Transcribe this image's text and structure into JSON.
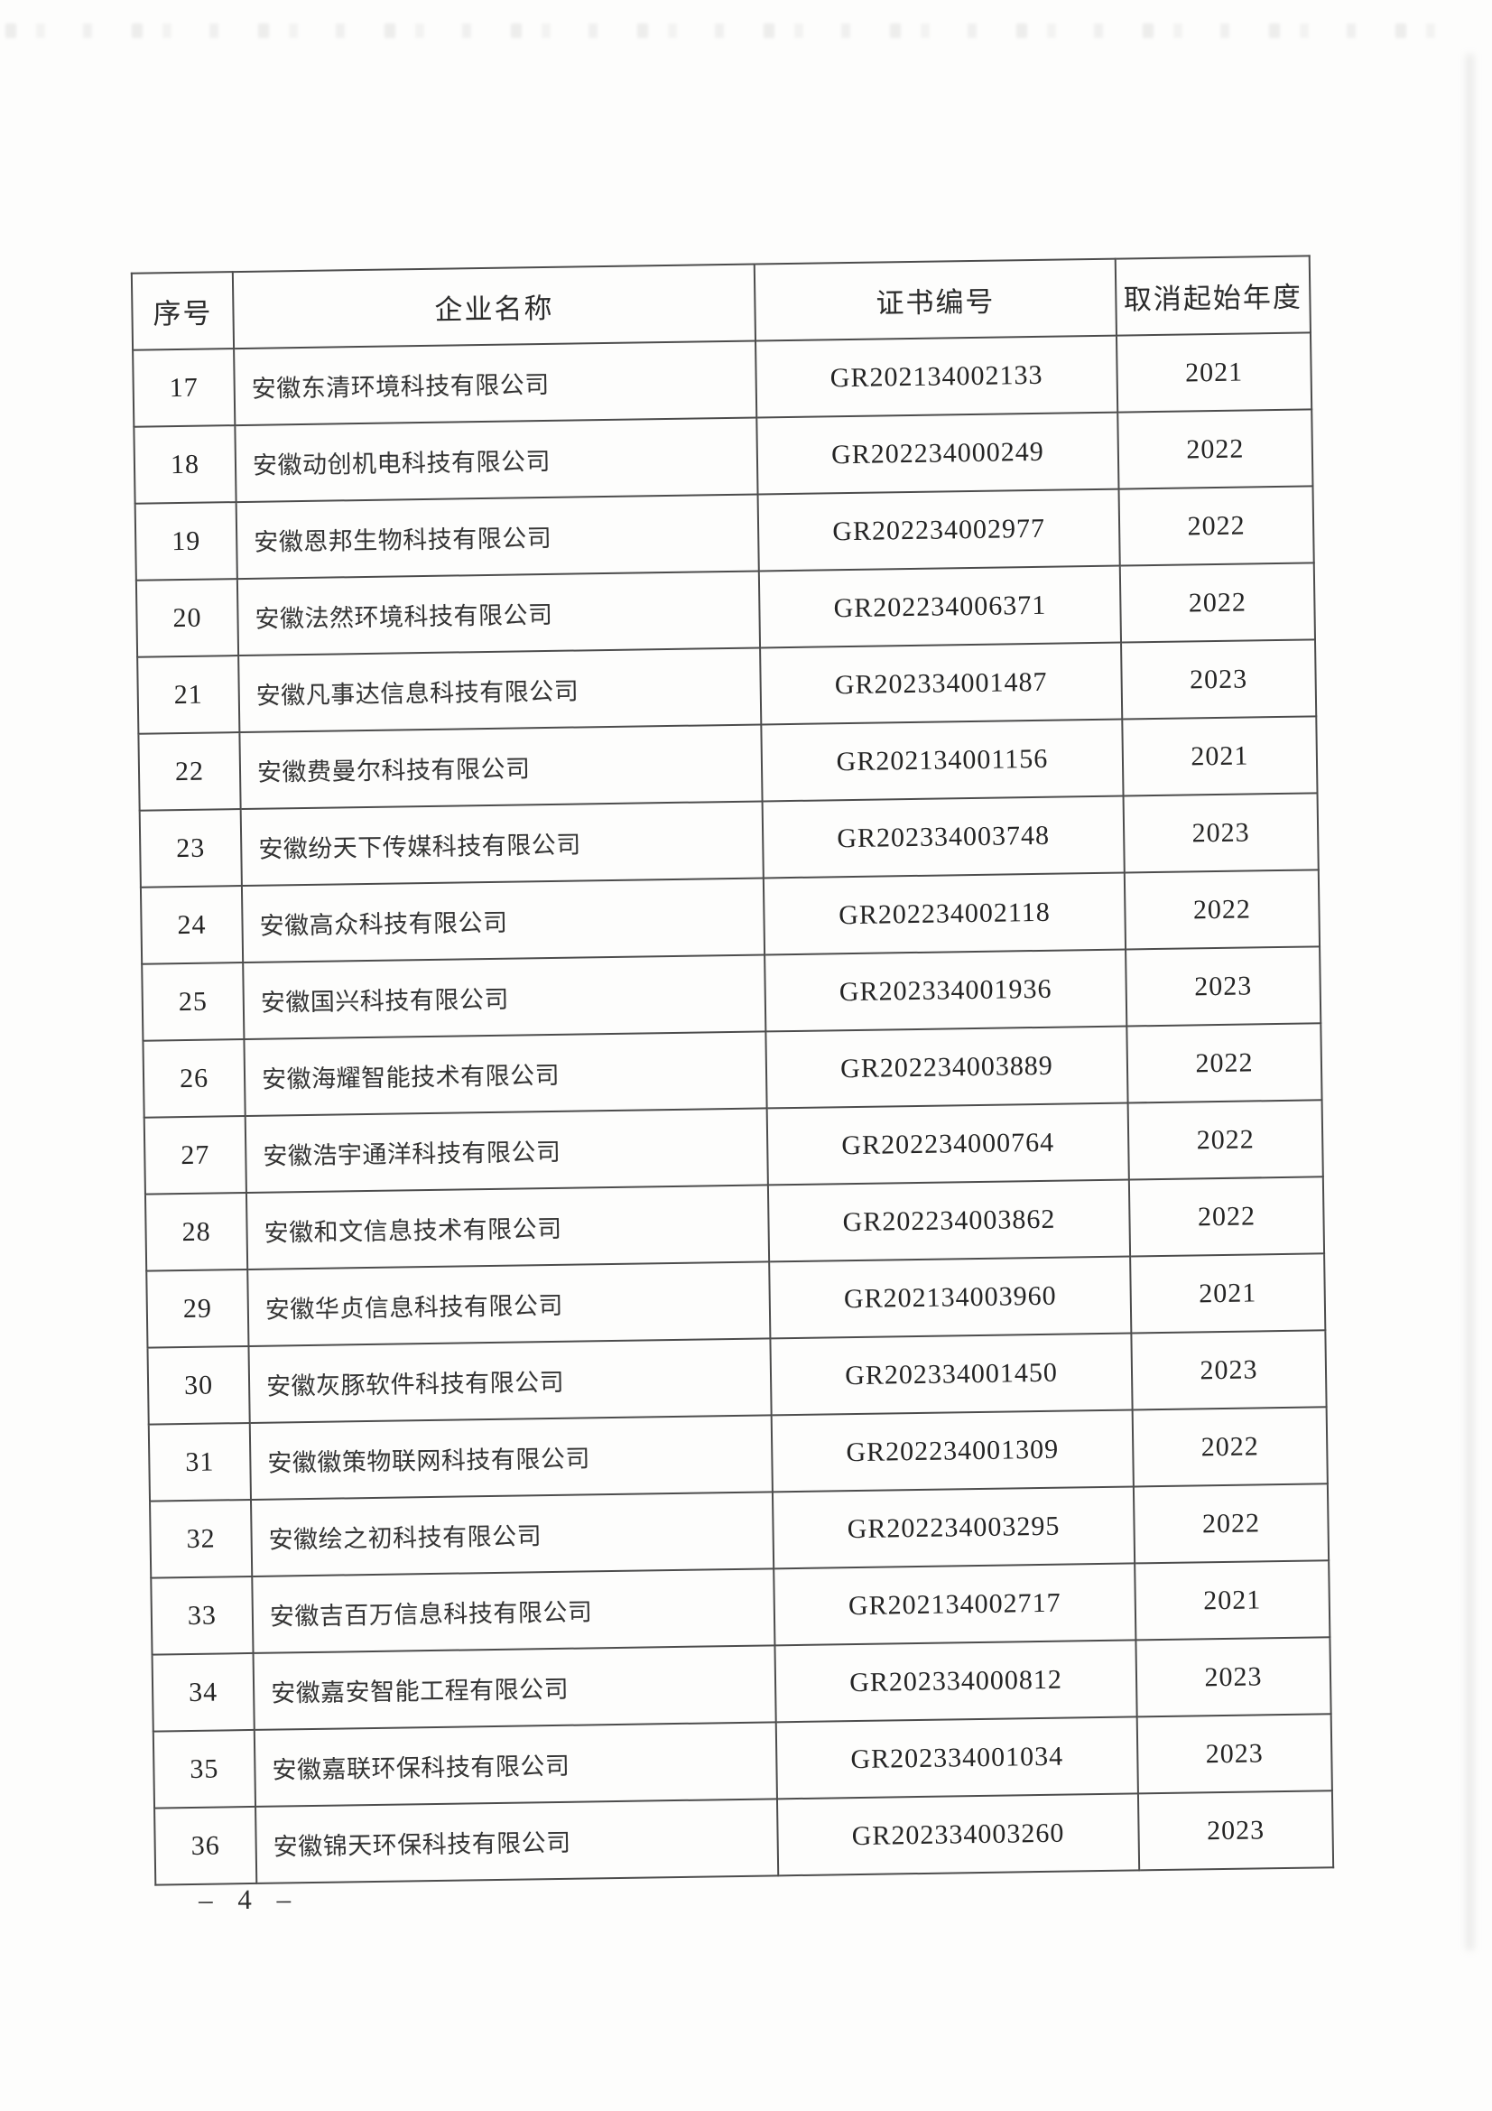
{
  "page": {
    "footer_page_number": "– 4 –"
  },
  "table": {
    "headers": {
      "index": "序号",
      "company": "企业名称",
      "certificate": "证书编号",
      "cancel_year": "取消起始年度"
    },
    "rows": [
      {
        "no": "17",
        "name": "安徽东清环境科技有限公司",
        "cert": "GR202134002133",
        "year": "2021"
      },
      {
        "no": "18",
        "name": "安徽动创机电科技有限公司",
        "cert": "GR202234000249",
        "year": "2022"
      },
      {
        "no": "19",
        "name": "安徽恩邦生物科技有限公司",
        "cert": "GR202234002977",
        "year": "2022"
      },
      {
        "no": "20",
        "name": "安徽法然环境科技有限公司",
        "cert": "GR202234006371",
        "year": "2022"
      },
      {
        "no": "21",
        "name": "安徽凡事达信息科技有限公司",
        "cert": "GR202334001487",
        "year": "2023"
      },
      {
        "no": "22",
        "name": "安徽费曼尔科技有限公司",
        "cert": "GR202134001156",
        "year": "2021"
      },
      {
        "no": "23",
        "name": "安徽纷天下传媒科技有限公司",
        "cert": "GR202334003748",
        "year": "2023"
      },
      {
        "no": "24",
        "name": "安徽高众科技有限公司",
        "cert": "GR202234002118",
        "year": "2022"
      },
      {
        "no": "25",
        "name": "安徽国兴科技有限公司",
        "cert": "GR202334001936",
        "year": "2023"
      },
      {
        "no": "26",
        "name": "安徽海耀智能技术有限公司",
        "cert": "GR202234003889",
        "year": "2022"
      },
      {
        "no": "27",
        "name": "安徽浩宇通洋科技有限公司",
        "cert": "GR202234000764",
        "year": "2022"
      },
      {
        "no": "28",
        "name": "安徽和文信息技术有限公司",
        "cert": "GR202234003862",
        "year": "2022"
      },
      {
        "no": "29",
        "name": "安徽华贞信息科技有限公司",
        "cert": "GR202134003960",
        "year": "2021"
      },
      {
        "no": "30",
        "name": "安徽灰豚软件科技有限公司",
        "cert": "GR202334001450",
        "year": "2023"
      },
      {
        "no": "31",
        "name": "安徽徽策物联网科技有限公司",
        "cert": "GR202234001309",
        "year": "2022"
      },
      {
        "no": "32",
        "name": "安徽绘之初科技有限公司",
        "cert": "GR202234003295",
        "year": "2022"
      },
      {
        "no": "33",
        "name": "安徽吉百万信息科技有限公司",
        "cert": "GR202134002717",
        "year": "2021"
      },
      {
        "no": "34",
        "name": "安徽嘉安智能工程有限公司",
        "cert": "GR202334000812",
        "year": "2023"
      },
      {
        "no": "35",
        "name": "安徽嘉联环保科技有限公司",
        "cert": "GR202334001034",
        "year": "2023"
      },
      {
        "no": "36",
        "name": "安徽锦天环保科技有限公司",
        "cert": "GR202334003260",
        "year": "2023"
      }
    ]
  }
}
